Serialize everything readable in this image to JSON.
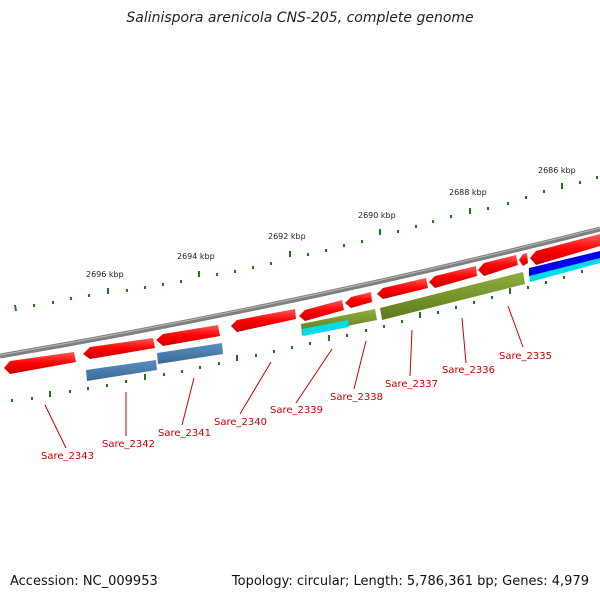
{
  "title": "Salinispora arenicola CNS-205, complete genome",
  "footer": {
    "accession": "Accession: NC_009953",
    "summary": "Topology: circular; Length: 5,786,361 bp; Genes: 4,979"
  },
  "kbp_labels": [
    "2696 kbp",
    "2694 kbp",
    "2692 kbp",
    "2690 kbp",
    "2688 kbp",
    "2686 kbp"
  ],
  "gene_labels": [
    "Sare_2343",
    "Sare_2342",
    "Sare_2341",
    "Sare_2340",
    "Sare_2339",
    "Sare_2338",
    "Sare_2337",
    "Sare_2336",
    "Sare_2335"
  ],
  "colors": {
    "cds": "#ff0000",
    "backbone": "#808080",
    "gc_skew": "#1a7a1a",
    "olive": "#6b8e23",
    "steelblue": "#4682b4",
    "cyan": "#00e5ee",
    "blue": "#0000ee",
    "label": "#cc0000"
  }
}
